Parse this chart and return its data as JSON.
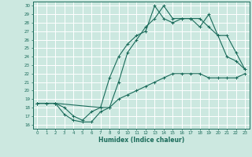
{
  "xlabel": "Humidex (Indice chaleur)",
  "bg_color": "#cce8e0",
  "grid_color": "#ffffff",
  "line_color": "#1a6b5a",
  "xlim": [
    -0.5,
    23.5
  ],
  "ylim": [
    15.5,
    30.5
  ],
  "xticks": [
    0,
    1,
    2,
    3,
    4,
    5,
    6,
    7,
    8,
    9,
    10,
    11,
    12,
    13,
    14,
    15,
    16,
    17,
    18,
    19,
    20,
    21,
    22,
    23
  ],
  "yticks": [
    16,
    17,
    18,
    19,
    20,
    21,
    22,
    23,
    24,
    25,
    26,
    27,
    28,
    29,
    30
  ],
  "line_bottom_x": [
    0,
    1,
    2,
    3,
    4,
    5,
    6,
    7,
    8,
    9,
    10,
    11,
    12,
    13,
    14,
    15,
    16,
    17,
    18,
    19,
    20,
    21,
    22,
    23
  ],
  "line_bottom_y": [
    18.5,
    18.5,
    18.5,
    17.2,
    16.5,
    16.3,
    16.3,
    17.5,
    18.0,
    19.0,
    19.5,
    20.0,
    20.5,
    21.0,
    21.5,
    22.0,
    22.0,
    22.0,
    22.0,
    21.5,
    21.5,
    21.5,
    21.5,
    22.0
  ],
  "line_mid_x": [
    0,
    1,
    2,
    3,
    4,
    5,
    6,
    7,
    8,
    9,
    10,
    11,
    12,
    13,
    14,
    15,
    16,
    17,
    18,
    19,
    20,
    21,
    22,
    23
  ],
  "line_mid_y": [
    18.5,
    18.5,
    18.5,
    18.0,
    17.0,
    16.5,
    17.5,
    18.0,
    21.5,
    24.0,
    25.5,
    26.5,
    27.0,
    30.0,
    28.5,
    28.0,
    28.5,
    28.5,
    27.5,
    29.0,
    26.5,
    24.0,
    23.5,
    22.5
  ],
  "line_top_x": [
    0,
    2,
    7,
    8,
    9,
    10,
    11,
    12,
    13,
    14,
    15,
    16,
    17,
    18,
    19,
    20,
    21,
    22,
    23
  ],
  "line_top_y": [
    18.5,
    18.5,
    18.0,
    18.0,
    21.0,
    24.5,
    26.0,
    27.5,
    28.5,
    30.0,
    28.5,
    28.5,
    28.5,
    28.5,
    27.5,
    26.5,
    26.5,
    24.5,
    22.5
  ]
}
